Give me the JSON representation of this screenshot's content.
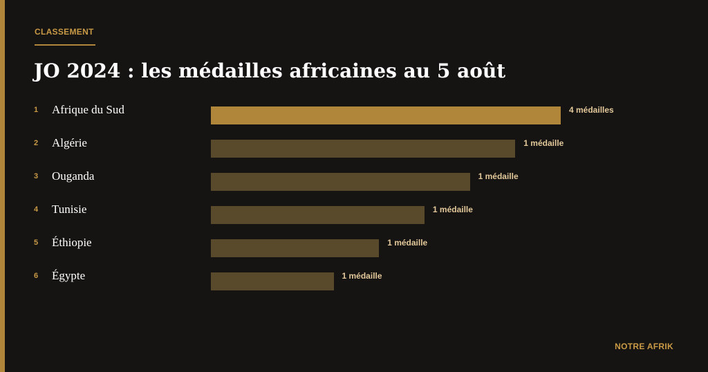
{
  "header": {
    "kicker": "CLASSEMENT",
    "title": "JO 2024 : les médailles africaines au 5 août"
  },
  "ranking": {
    "rows": [
      {
        "rank": "1",
        "country": "Afrique du Sud",
        "medals": "4 médailles"
      },
      {
        "rank": "2",
        "country": "Algérie",
        "medals": "1 médaille"
      },
      {
        "rank": "3",
        "country": "Ouganda",
        "medals": "1 médaille"
      },
      {
        "rank": "4",
        "country": "Tunisie",
        "medals": "1 médaille"
      },
      {
        "rank": "5",
        "country": "Éthiopie",
        "medals": "1 médaille"
      },
      {
        "rank": "6",
        "country": "Égypte",
        "medals": "1 médaille"
      }
    ]
  },
  "footer": {
    "brand": "NOTRE AFRIK"
  }
}
